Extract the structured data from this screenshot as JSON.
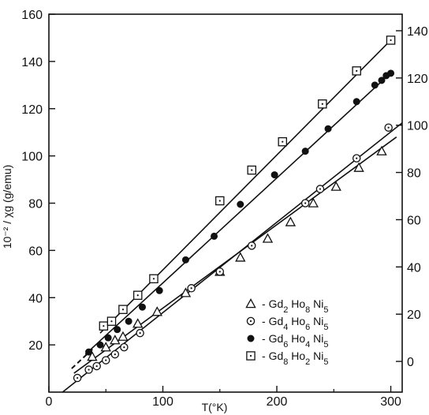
{
  "chart_data": {
    "type": "scatter",
    "title": "",
    "xlabel": "T(°K)",
    "ylabel": "10⁻² / χg (g/emu)",
    "xlim": [
      0,
      310
    ],
    "ylim_left": [
      0,
      160
    ],
    "ylim_right": [
      -13,
      147
    ],
    "x_ticks": [
      0,
      100,
      200,
      300
    ],
    "y_ticks_left": [
      20,
      40,
      60,
      80,
      100,
      120,
      140,
      160
    ],
    "y_ticks_right": [
      0,
      20,
      40,
      60,
      80,
      100,
      120,
      140
    ],
    "grid": false,
    "legend_position": "bottom-right",
    "series": [
      {
        "name": "Gd2 Ho8 Ni5",
        "formula": {
          "pre1": "Gd",
          "sub1": "2",
          "pre2": " Ho",
          "sub2": "8",
          "pre3": "Ni",
          "sub3": "5"
        },
        "marker": "triangle",
        "axis": "right",
        "x": [
          38,
          50,
          58,
          65,
          78,
          95,
          120,
          150,
          168,
          192,
          212,
          232,
          252,
          272,
          292
        ],
        "y": [
          2,
          6,
          9,
          10.5,
          16,
          21,
          29,
          38,
          44,
          52,
          59,
          67,
          74,
          82,
          89
        ],
        "fit_line": [
          [
            22,
            -5
          ],
          [
            305,
            95
          ]
        ],
        "dashed_extension": null
      },
      {
        "name": "Gd4 Ho6 Ni5",
        "formula": {
          "pre1": "Gd",
          "sub1": "4",
          "pre2": " Ho",
          "sub2": "6",
          "pre3": "Ni",
          "sub3": "5"
        },
        "marker": "open-circle",
        "axis": "left",
        "x": [
          25,
          35,
          42,
          50,
          58,
          66,
          80,
          125,
          150,
          178,
          225,
          238,
          270,
          298
        ],
        "y": [
          6,
          9.5,
          11,
          13.5,
          16,
          19,
          25,
          44,
          51,
          62,
          80,
          86,
          99,
          112
        ],
        "fit_line": [
          [
            12,
            0
          ],
          [
            310,
            114
          ]
        ],
        "dashed_extension": null
      },
      {
        "name": "Gd6 Ho4 Ni5",
        "formula": {
          "pre1": "Gd",
          "sub1": "6",
          "pre2": " Ho",
          "sub2": "4",
          "pre3": "Ni",
          "sub3": "5"
        },
        "marker": "filled-circle",
        "axis": "left",
        "x": [
          35,
          45,
          52,
          60,
          70,
          82,
          97,
          120,
          145,
          168,
          198,
          225,
          245,
          270,
          286,
          292,
          296,
          300
        ],
        "y": [
          17,
          20,
          23,
          26.5,
          30,
          36,
          43,
          56,
          66,
          79.5,
          92,
          102,
          111.5,
          123,
          130,
          132,
          134,
          135
        ],
        "fit_line": [
          [
            32,
            16
          ],
          [
            302,
            136
          ]
        ],
        "dashed_extension": [
          [
            20,
            10
          ],
          [
            40,
            19
          ]
        ]
      },
      {
        "name": "Gd8 Ho2 Ni5",
        "formula": {
          "pre1": "Gd",
          "sub1": "8",
          "pre2": " Ho",
          "sub2": "2",
          "pre3": "Ni",
          "sub3": "5"
        },
        "marker": "square",
        "axis": "right",
        "x": [
          48,
          55,
          65,
          78,
          92,
          150,
          178,
          205,
          240,
          270,
          300
        ],
        "y": [
          15,
          17,
          22,
          28,
          35,
          68,
          81,
          93,
          109,
          123,
          136
        ],
        "fit_line": [
          [
            45,
            12
          ],
          [
            302,
            137
          ]
        ],
        "dashed_extension": null
      }
    ]
  }
}
